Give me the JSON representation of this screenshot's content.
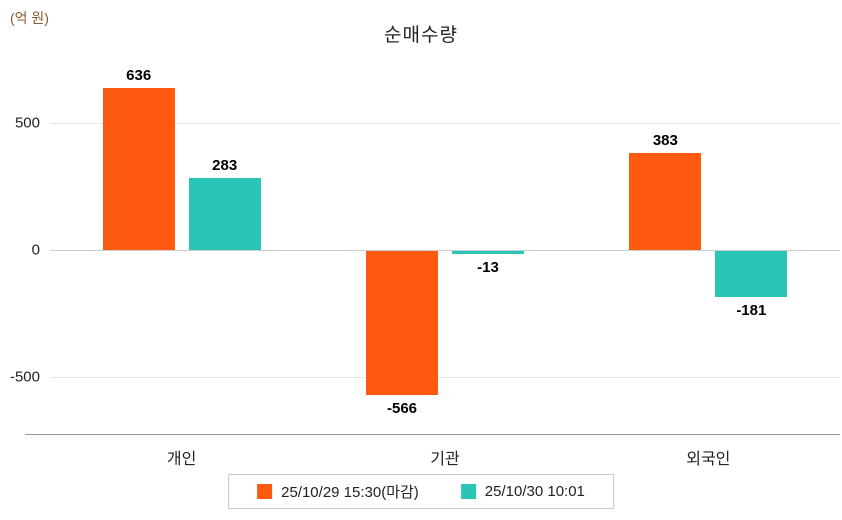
{
  "page": {
    "title": "순매수량",
    "unit_label": "(억 원)",
    "unit_label_color": "#8a5a2c"
  },
  "chart_data": {
    "type": "bar",
    "title": "순매수량",
    "ylabel": "(억 원)",
    "categories": [
      "개인",
      "기관",
      "외국인"
    ],
    "series": [
      {
        "name": "25/10/29 15:30(마감)",
        "color": "#ff5a0f",
        "values": [
          636,
          -566,
          383
        ]
      },
      {
        "name": "25/10/30 10:01",
        "color": "#29c5b6",
        "values": [
          283,
          -13,
          -181
        ]
      }
    ],
    "value_labels": [
      [
        "636",
        "-566",
        "383"
      ],
      [
        "283",
        "-13",
        "-181"
      ]
    ],
    "y_ticks": [
      500,
      0,
      -500
    ],
    "ylim": [
      -700,
      800
    ],
    "grid": true,
    "legend_position": "bottom"
  }
}
